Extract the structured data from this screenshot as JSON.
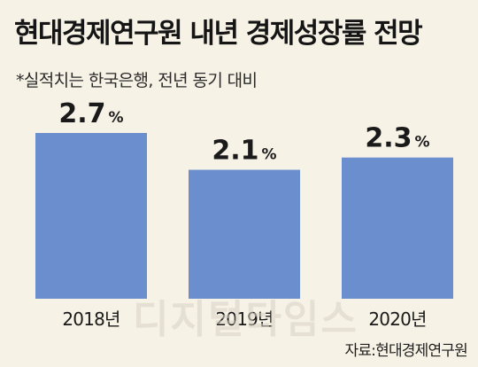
{
  "title": "현대경제연구원 내년 경제성장률 전망",
  "subtitle": "*실적치는 한국은행, 전년 동기 대비",
  "watermark": "디지털타임스",
  "source": "자료:현대경제연구원",
  "colors": {
    "bar": "#6b8fce",
    "background": "#f7f2e6"
  },
  "chart_data": {
    "type": "bar",
    "categories": [
      "2018년",
      "2019년",
      "2020년"
    ],
    "values": [
      2.7,
      2.1,
      2.3
    ],
    "value_labels": [
      "2.7",
      "2.1",
      "2.3"
    ],
    "unit": "%",
    "title": "현대경제연구원 내년 경제성장률 전망",
    "xlabel": "",
    "ylabel": "",
    "ylim": [
      0,
      3.18
    ],
    "grid": false,
    "legend": "none"
  }
}
